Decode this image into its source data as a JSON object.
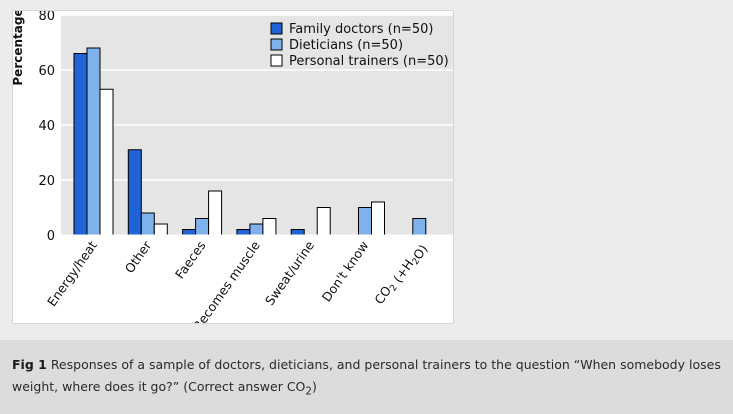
{
  "colors": {
    "family_doctors": "#1f63d6",
    "dieticians": "#7fb1ec",
    "personal_trainers": "#ffffff",
    "plot_background": "#e5e5e5",
    "gridline": "#ffffff"
  },
  "caption": {
    "label": "Fig 1",
    "text": "Responses of a sample of doctors, dieticians, and personal trainers to the question “When somebody loses weight, where does it go?” (Correct answer CO",
    "subscript": "2",
    "closing": ")"
  },
  "chart_data": {
    "type": "bar",
    "ylabel": "Percentage",
    "xlabel": "",
    "ylim": [
      0,
      80
    ],
    "yticks": [
      0,
      20,
      40,
      60,
      80
    ],
    "grid": true,
    "legend_position": "top-right",
    "categories": [
      "Energy/heat",
      "Other",
      "Faeces",
      "Becomes muscle",
      "Sweat/urine",
      "Don't know",
      "CO2 (+H2O)"
    ],
    "series": [
      {
        "name": "Family doctors (n=50)",
        "values": [
          66,
          31,
          2,
          2,
          2,
          0,
          0
        ]
      },
      {
        "name": "Dieticians (n=50)",
        "values": [
          68,
          8,
          6,
          4,
          0,
          10,
          6
        ]
      },
      {
        "name": "Personal trainers (n=50)",
        "values": [
          53,
          4,
          16,
          6,
          10,
          12,
          0
        ]
      }
    ]
  }
}
